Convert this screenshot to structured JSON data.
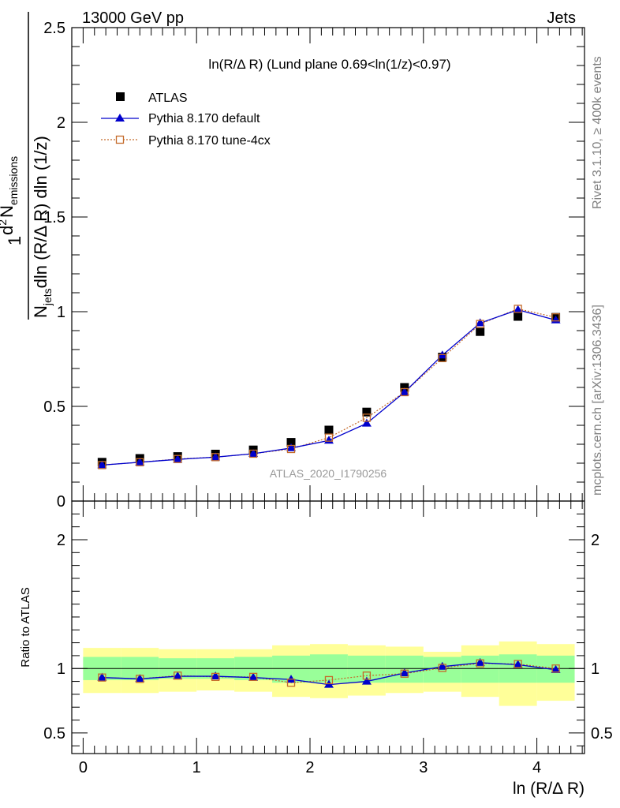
{
  "header": {
    "left": "13000 GeV pp",
    "right": "Jets",
    "side_rivet": "Rivet 3.1.10, ≥ 400k events",
    "side_mcplots": "mcplots.cern.ch [arXiv:1306.3436]",
    "analysis": "ATLAS_2020_I1790256"
  },
  "chart_data": [
    {
      "type": "scatter",
      "title": "ln(R/Δ R) (Lund plane 0.69<ln(1/z)<0.97)",
      "ylabel": "1/N_jets dN_emissions/dln(R/ΔR) dln(1/z)",
      "ylabel_parts": {
        "frac_one": "1",
        "num_d": "d",
        "num_pow": "2",
        "num_N": "N",
        "num_sub": "emissions",
        "den_N": "N",
        "den_sub": "jets",
        "den_rest": "dln (R/Δ R) dln (1/z)"
      },
      "xlim": [
        -0.1,
        4.42
      ],
      "ylim": [
        0,
        2.5
      ],
      "y_ticks": [
        "0",
        "0.5",
        "1",
        "1.5",
        "2",
        "2.5"
      ],
      "x": [
        0.1667,
        0.5,
        0.8333,
        1.1667,
        1.5,
        1.8333,
        2.1667,
        2.5,
        2.8333,
        3.1667,
        3.5,
        3.8333,
        4.1667
      ],
      "legend_placement": "top-left",
      "series": [
        {
          "name": "ATLAS",
          "color": "#000000",
          "marker": "square-filled",
          "values": [
            0.205,
            0.225,
            0.235,
            0.248,
            0.27,
            0.31,
            0.375,
            0.47,
            0.6,
            0.76,
            0.895,
            0.975,
            0.97
          ]
        },
        {
          "name": "Pythia 8.170 default",
          "color": "#0000cc",
          "marker": "triangle-filled",
          "values": [
            0.19,
            0.205,
            0.22,
            0.232,
            0.25,
            0.28,
            0.32,
            0.41,
            0.575,
            0.77,
            0.94,
            1.01,
            0.955
          ]
        },
        {
          "name": "Pythia 8.170 tune-4cx",
          "color": "#c46a2a",
          "marker": "square-open",
          "values": [
            0.19,
            0.205,
            0.222,
            0.232,
            0.25,
            0.275,
            0.335,
            0.44,
            0.575,
            0.755,
            0.935,
            1.015,
            0.97
          ]
        }
      ]
    },
    {
      "type": "scatter",
      "ylabel": "Ratio to ATLAS",
      "xlabel": "ln (R/Δ R)",
      "xlim": [
        -0.1,
        4.42
      ],
      "ylim": [
        0.34,
        2.3
      ],
      "x_ticks": [
        "0",
        "1",
        "2",
        "3",
        "4"
      ],
      "y_ticks": [
        "0.5",
        "1",
        "2"
      ],
      "bin_edges": [
        0,
        0.3333,
        0.6667,
        1.0,
        1.3333,
        1.6667,
        2.0,
        2.3333,
        2.6667,
        3.0,
        3.3333,
        3.6667,
        4.0,
        4.3333
      ],
      "band_stat": {
        "color": "#99ff99",
        "low": [
          0.91,
          0.91,
          0.92,
          0.92,
          0.91,
          0.89,
          0.89,
          0.89,
          0.89,
          0.89,
          0.89,
          0.89,
          0.89
        ],
        "high": [
          1.09,
          1.09,
          1.08,
          1.08,
          1.09,
          1.1,
          1.11,
          1.1,
          1.1,
          1.09,
          1.1,
          1.11,
          1.1
        ]
      },
      "band_total": {
        "color": "#ffff99",
        "low": [
          0.81,
          0.81,
          0.82,
          0.83,
          0.82,
          0.78,
          0.77,
          0.79,
          0.81,
          0.82,
          0.78,
          0.71,
          0.75
        ],
        "high": [
          1.16,
          1.16,
          1.15,
          1.15,
          1.15,
          1.18,
          1.19,
          1.18,
          1.17,
          1.13,
          1.18,
          1.21,
          1.19
        ]
      },
      "series": [
        {
          "name": "Pythia 8.170 default",
          "color": "#0000cc",
          "marker": "triangle-filled",
          "values": [
            0.93,
            0.92,
            0.94,
            0.94,
            0.93,
            0.915,
            0.875,
            0.9,
            0.965,
            1.015,
            1.045,
            1.03,
            0.99
          ]
        },
        {
          "name": "Pythia 8.170 tune-4cx",
          "color": "#c46a2a",
          "marker": "square-open",
          "values": [
            0.93,
            0.92,
            0.945,
            0.935,
            0.935,
            0.89,
            0.91,
            0.945,
            0.96,
            1.005,
            1.04,
            1.035,
            1.0
          ]
        }
      ]
    }
  ]
}
